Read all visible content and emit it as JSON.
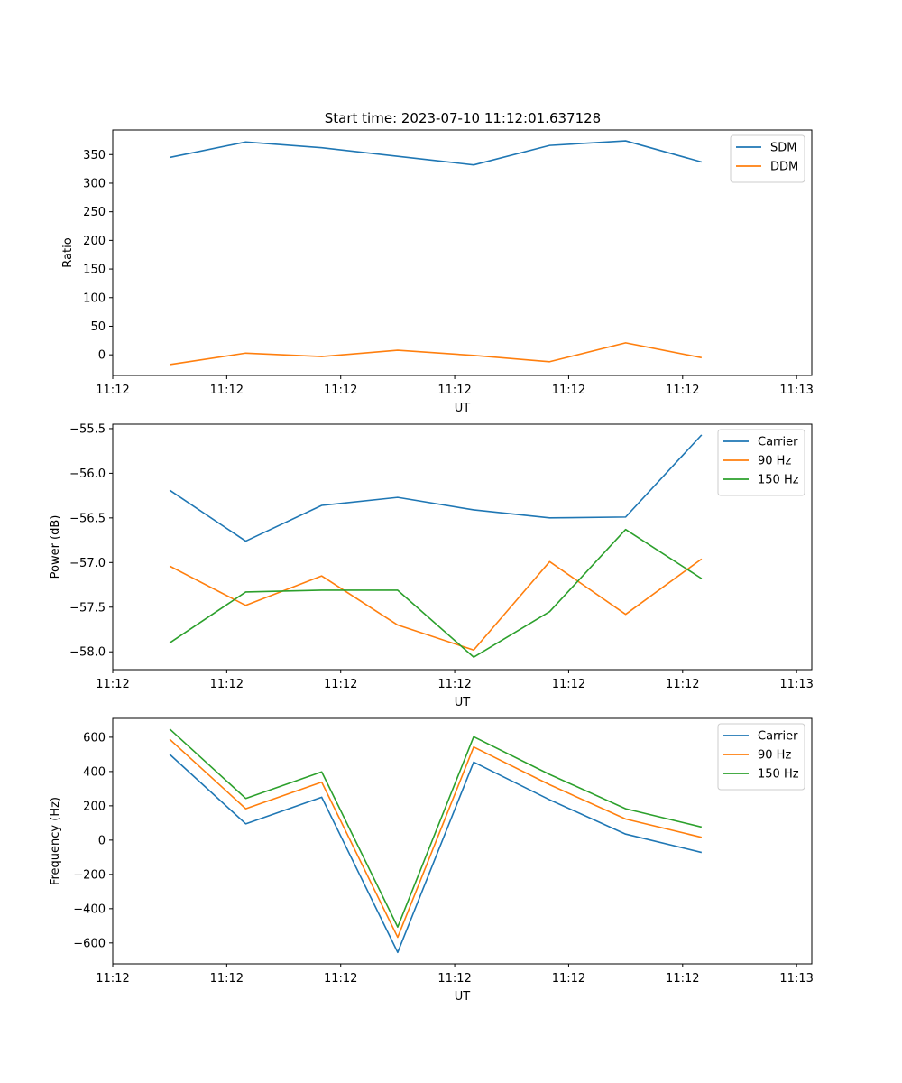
{
  "figure_title": "Start time: 2023-07-10 11:12:01.637128",
  "colors": {
    "blue": "#1f77b4",
    "orange": "#ff7f0e",
    "green": "#2ca02c"
  },
  "chart_data": [
    {
      "type": "line",
      "xlabel": "UT",
      "ylabel": "Ratio",
      "xlim": [
        0,
        9.2
      ],
      "ylim": [
        -36,
        393
      ],
      "x": [
        0.75,
        1.75,
        2.75,
        3.75,
        4.75,
        5.75,
        6.75,
        7.75
      ],
      "x_ticks": [
        0,
        1.5,
        3,
        4.5,
        6,
        7.5,
        9
      ],
      "x_tick_labels": [
        "11:12",
        "11:12",
        "11:12",
        "11:12",
        "11:12",
        "11:12",
        "11:13"
      ],
      "y_ticks": [
        0,
        50,
        100,
        150,
        200,
        250,
        300,
        350
      ],
      "y_tick_labels": [
        "0",
        "50",
        "100",
        "150",
        "200",
        "250",
        "300",
        "350"
      ],
      "legend_position": "top-right",
      "series": [
        {
          "name": "SDM",
          "color": "#1f77b4",
          "values": [
            345,
            372,
            362,
            347,
            332,
            366,
            374,
            337
          ]
        },
        {
          "name": "DDM",
          "color": "#ff7f0e",
          "values": [
            -17,
            3,
            -3,
            8,
            -1,
            -12,
            21,
            -5
          ]
        }
      ]
    },
    {
      "type": "line",
      "xlabel": "UT",
      "ylabel": "Power (dB)",
      "xlim": [
        0,
        9.2
      ],
      "ylim": [
        -58.2,
        -55.45
      ],
      "x": [
        0.75,
        1.75,
        2.75,
        3.75,
        4.75,
        5.75,
        6.75,
        7.75
      ],
      "x_ticks": [
        0,
        1.5,
        3,
        4.5,
        6,
        7.5,
        9
      ],
      "x_tick_labels": [
        "11:12",
        "11:12",
        "11:12",
        "11:12",
        "11:12",
        "11:12",
        "11:13"
      ],
      "y_ticks": [
        -58.0,
        -57.5,
        -57.0,
        -56.5,
        -56.0,
        -55.5
      ],
      "y_tick_labels": [
        "−58.0",
        "−57.5",
        "−57.0",
        "−56.5",
        "−56.0",
        "−55.5"
      ],
      "legend_position": "top-right",
      "series": [
        {
          "name": "Carrier",
          "color": "#1f77b4",
          "values": [
            -56.19,
            -56.76,
            -56.36,
            -56.27,
            -56.41,
            -56.5,
            -56.49,
            -55.57
          ]
        },
        {
          "name": "90 Hz",
          "color": "#ff7f0e",
          "values": [
            -57.04,
            -57.48,
            -57.15,
            -57.7,
            -57.98,
            -56.99,
            -57.58,
            -56.96
          ]
        },
        {
          "name": "150 Hz",
          "color": "#2ca02c",
          "values": [
            -57.9,
            -57.33,
            -57.31,
            -57.31,
            -58.06,
            -57.55,
            -56.63,
            -57.18
          ]
        }
      ]
    },
    {
      "type": "line",
      "xlabel": "UT",
      "ylabel": "Frequency (Hz)",
      "xlim": [
        0,
        9.2
      ],
      "ylim": [
        -722,
        710
      ],
      "x": [
        0.75,
        1.75,
        2.75,
        3.75,
        4.75,
        5.75,
        6.75,
        7.75
      ],
      "x_ticks": [
        0,
        1.5,
        3,
        4.5,
        6,
        7.5,
        9
      ],
      "x_tick_labels": [
        "11:12",
        "11:12",
        "11:12",
        "11:12",
        "11:12",
        "11:12",
        "11:13"
      ],
      "y_ticks": [
        -600,
        -400,
        -200,
        0,
        200,
        400,
        600
      ],
      "y_tick_labels": [
        "−600",
        "−400",
        "−200",
        "0",
        "200",
        "400",
        "600"
      ],
      "legend_position": "top-right",
      "series": [
        {
          "name": "Carrier",
          "color": "#1f77b4",
          "values": [
            500,
            95,
            250,
            -655,
            455,
            235,
            35,
            -72
          ]
        },
        {
          "name": "90 Hz",
          "color": "#ff7f0e",
          "values": [
            588,
            183,
            338,
            -567,
            543,
            323,
            123,
            16
          ]
        },
        {
          "name": "150 Hz",
          "color": "#2ca02c",
          "values": [
            648,
            243,
            398,
            -507,
            603,
            383,
            183,
            76
          ]
        }
      ]
    }
  ]
}
